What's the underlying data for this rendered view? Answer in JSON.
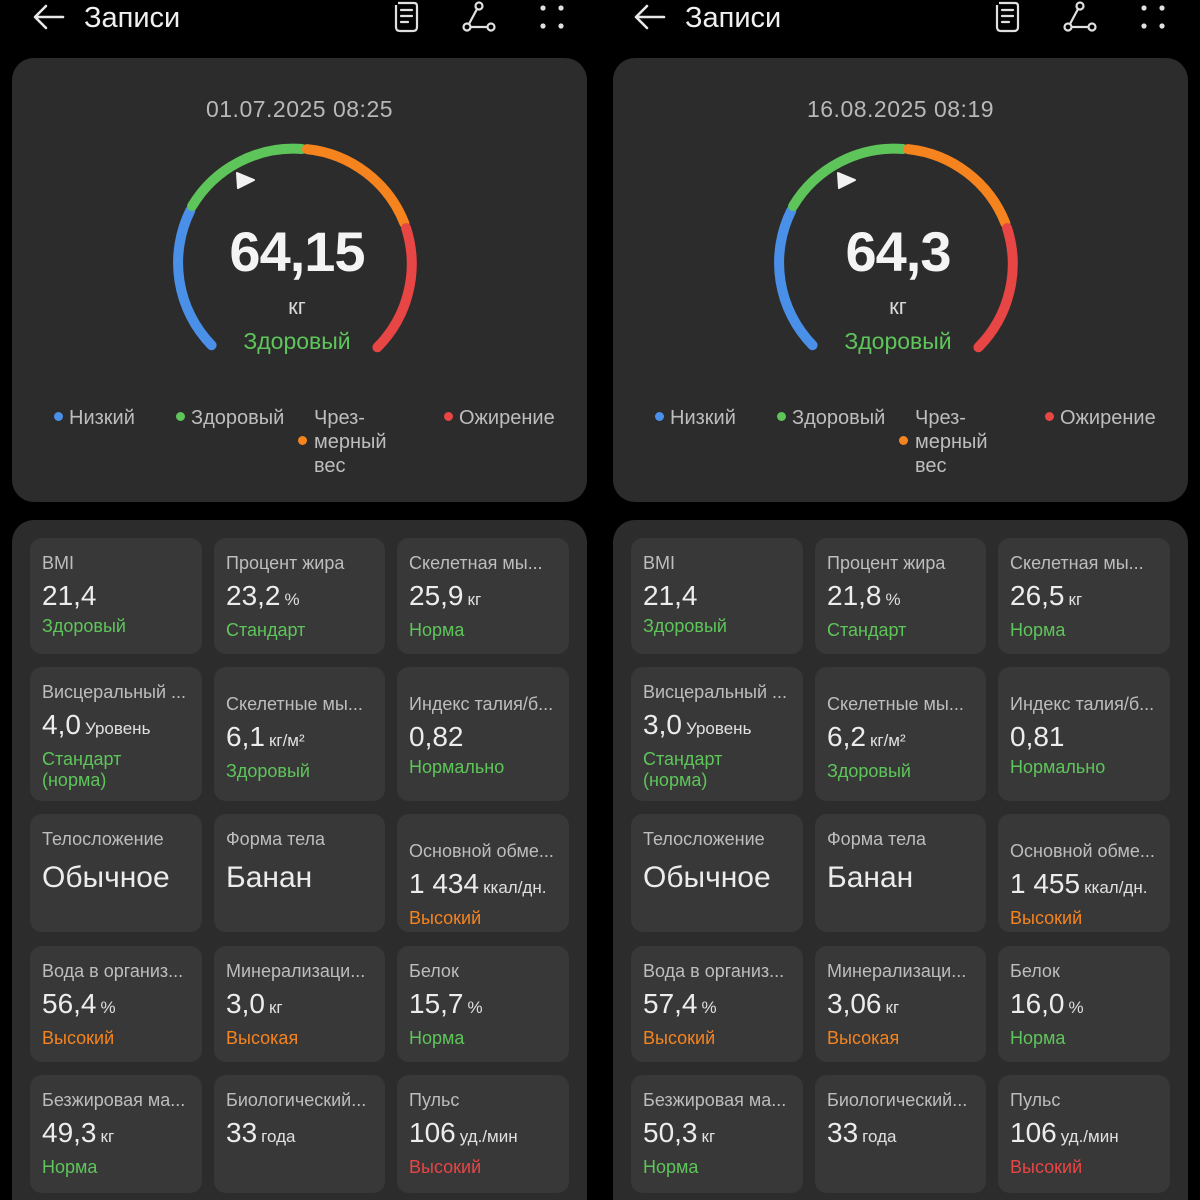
{
  "colors": {
    "low": "#4a90e8",
    "healthy": "#5ec55a",
    "overweight": "#f5841f",
    "obese": "#e84545",
    "background": "#000000",
    "card": "#2c2c2c",
    "cell": "#383838"
  },
  "header": {
    "title": "Записи",
    "icons": [
      "back-arrow-icon",
      "report-icon",
      "share-icon",
      "more-icon"
    ]
  },
  "legend": {
    "low": "Низкий",
    "healthy": "Здоровый",
    "overweight": "Чрез-\nмерный\nвес",
    "obese": "Ожирение"
  },
  "left": {
    "date": "01.07.2025 08:25",
    "weight": "64,15",
    "unit": "кг",
    "status": "Здоровый",
    "metrics": [
      {
        "label": "BMI",
        "value": "21,4",
        "unit": "",
        "status": "Здоровый",
        "tone": "green"
      },
      {
        "label": "Процент жира",
        "value": "23,2",
        "unit": "%",
        "status": "Стандарт",
        "tone": "green"
      },
      {
        "label": "Скелетная мы...",
        "value": "25,9",
        "unit": "кг",
        "status": "Норма",
        "tone": "green"
      },
      {
        "label": "Висцеральный ...",
        "value": "4,0",
        "unit": "Уровень",
        "status": "Стандарт (норма)",
        "tone": "green"
      },
      {
        "label": "Скелетные мы...",
        "value": "6,1",
        "unit": "кг/м²",
        "status": "Здоровый",
        "tone": "green"
      },
      {
        "label": "Индекс талия/б...",
        "value": "0,82",
        "unit": "",
        "status": "Нормально",
        "tone": "green"
      },
      {
        "label": "Телосложение",
        "value": "Обычное",
        "unit": "",
        "status": "",
        "tone": "green"
      },
      {
        "label": "Форма тела",
        "value": "Банан",
        "unit": "",
        "status": "",
        "tone": "green"
      },
      {
        "label": "Основной обме...",
        "value": "1 434",
        "unit": "ккал/дн.",
        "status": "Высокий",
        "tone": "orange"
      },
      {
        "label": "Вода в организ...",
        "value": "56,4",
        "unit": "%",
        "status": "Высокий",
        "tone": "orange"
      },
      {
        "label": "Минерализаци...",
        "value": "3,0",
        "unit": "кг",
        "status": "Высокая",
        "tone": "orange"
      },
      {
        "label": "Белок",
        "value": "15,7",
        "unit": "%",
        "status": "Норма",
        "tone": "green"
      },
      {
        "label": "Безжировая ма...",
        "value": "49,3",
        "unit": "кг",
        "status": "Норма",
        "tone": "green"
      },
      {
        "label": "Биологический...",
        "value": "33",
        "unit": "года",
        "status": "",
        "tone": "green"
      },
      {
        "label": "Пульс",
        "value": "106",
        "unit": "уд./мин",
        "status": "Высокий",
        "tone": "red"
      }
    ]
  },
  "right": {
    "date": "16.08.2025 08:19",
    "weight": "64,3",
    "unit": "кг",
    "status": "Здоровый",
    "metrics": [
      {
        "label": "BMI",
        "value": "21,4",
        "unit": "",
        "status": "Здоровый",
        "tone": "green"
      },
      {
        "label": "Процент жира",
        "value": "21,8",
        "unit": "%",
        "status": "Стандарт",
        "tone": "green"
      },
      {
        "label": "Скелетная мы...",
        "value": "26,5",
        "unit": "кг",
        "status": "Норма",
        "tone": "green"
      },
      {
        "label": "Висцеральный ...",
        "value": "3,0",
        "unit": "Уровень",
        "status": "Стандарт (норма)",
        "tone": "green"
      },
      {
        "label": "Скелетные мы...",
        "value": "6,2",
        "unit": "кг/м²",
        "status": "Здоровый",
        "tone": "green"
      },
      {
        "label": "Индекс талия/б...",
        "value": "0,81",
        "unit": "",
        "status": "Нормально",
        "tone": "green"
      },
      {
        "label": "Телосложение",
        "value": "Обычное",
        "unit": "",
        "status": "",
        "tone": "green"
      },
      {
        "label": "Форма тела",
        "value": "Банан",
        "unit": "",
        "status": "",
        "tone": "green"
      },
      {
        "label": "Основной обме...",
        "value": "1 455",
        "unit": "ккал/дн.",
        "status": "Высокий",
        "tone": "orange"
      },
      {
        "label": "Вода в организ...",
        "value": "57,4",
        "unit": "%",
        "status": "Высокий",
        "tone": "orange"
      },
      {
        "label": "Минерализаци...",
        "value": "3,06",
        "unit": "кг",
        "status": "Высокая",
        "tone": "orange"
      },
      {
        "label": "Белок",
        "value": "16,0",
        "unit": "%",
        "status": "Норма",
        "tone": "green"
      },
      {
        "label": "Безжировая ма...",
        "value": "50,3",
        "unit": "кг",
        "status": "Норма",
        "tone": "green"
      },
      {
        "label": "Биологический...",
        "value": "33",
        "unit": "года",
        "status": "",
        "tone": "green"
      },
      {
        "label": "Пульс",
        "value": "106",
        "unit": "уд./мин",
        "status": "Высокий",
        "tone": "red"
      }
    ]
  }
}
